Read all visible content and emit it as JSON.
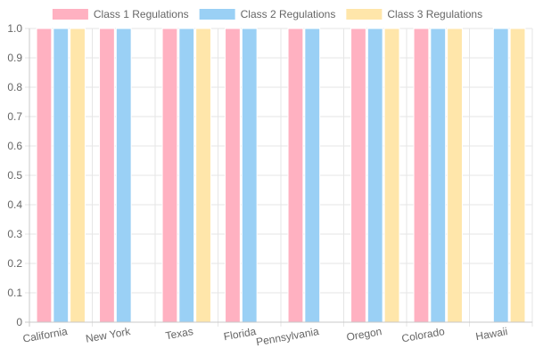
{
  "chart_data": {
    "type": "bar",
    "categories": [
      "California",
      "New York",
      "Texas",
      "Florida",
      "Pennsylvania",
      "Oregon",
      "Colorado",
      "Hawaii"
    ],
    "series": [
      {
        "name": "Class 1 Regulations",
        "values": [
          1,
          1,
          1,
          1,
          1,
          1,
          1,
          0
        ],
        "color": "#ffb1c1",
        "border": "#ff6384"
      },
      {
        "name": "Class 2 Regulations",
        "values": [
          1,
          1,
          1,
          1,
          1,
          1,
          1,
          1
        ],
        "color": "#9ad0f5",
        "border": "#36a2eb"
      },
      {
        "name": "Class 3 Regulations",
        "values": [
          1,
          0,
          1,
          0,
          0,
          1,
          1,
          1
        ],
        "color": "#ffe6aa",
        "border": "#ffcd56"
      }
    ],
    "y_ticks": [
      "0",
      "0.1",
      "0.2",
      "0.3",
      "0.4",
      "0.5",
      "0.6",
      "0.7",
      "0.8",
      "0.9",
      "1.0"
    ],
    "ylim": [
      0,
      1
    ],
    "grid": true,
    "legend_position": "top"
  }
}
